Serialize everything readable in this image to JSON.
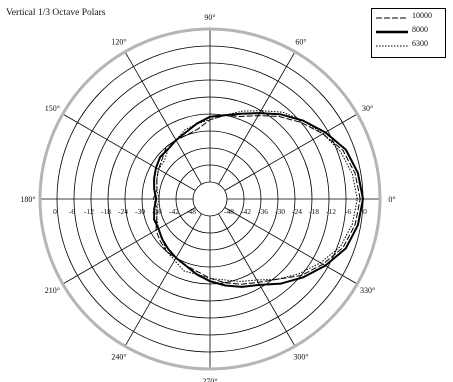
{
  "title": "Vertical 1/3 Octave Polars",
  "chart_data": {
    "type": "polar-line",
    "title": "Vertical 1/3 Octave Polars",
    "angular_ticks_deg": [
      0,
      30,
      60,
      90,
      120,
      150,
      180,
      210,
      240,
      270,
      300,
      330
    ],
    "angular_tick_labels": [
      "0°",
      "30°",
      "60°",
      "90°",
      "120°",
      "150°",
      "180°",
      "210°",
      "240°",
      "270°",
      "300°",
      "330°"
    ],
    "radial_ticks_db": [
      0,
      -6,
      -12,
      -18,
      -24,
      -30,
      -36,
      -42,
      -48
    ],
    "radial_labels_right": [
      "-48",
      "-42",
      "-36",
      "-30",
      "-24",
      "-18",
      "-12",
      "-6",
      "0"
    ],
    "radial_labels_left": [
      "0",
      "-6",
      "-12",
      "-18",
      "-24",
      "-30",
      "-36",
      "-42",
      "-48"
    ],
    "r_range_db": [
      -54,
      0
    ],
    "grid": true,
    "legend_placement": "top-right",
    "series": [
      {
        "name": "10000",
        "style": "dashed",
        "color": "#000000",
        "points": [
          [
            0,
            -1
          ],
          [
            10,
            -2
          ],
          [
            20,
            -4
          ],
          [
            30,
            -8
          ],
          [
            40,
            -12
          ],
          [
            50,
            -16
          ],
          [
            60,
            -20
          ],
          [
            70,
            -23
          ],
          [
            80,
            -24
          ],
          [
            90,
            -26
          ],
          [
            100,
            -29
          ],
          [
            110,
            -30
          ],
          [
            120,
            -30
          ],
          [
            130,
            -30
          ],
          [
            140,
            -32
          ],
          [
            150,
            -33
          ],
          [
            160,
            -34
          ],
          [
            170,
            -35
          ],
          [
            180,
            -34
          ],
          [
            190,
            -35
          ],
          [
            200,
            -34
          ],
          [
            210,
            -32
          ],
          [
            220,
            -31
          ],
          [
            230,
            -30
          ],
          [
            240,
            -30
          ],
          [
            250,
            -29
          ],
          [
            260,
            -28
          ],
          [
            270,
            -26
          ],
          [
            280,
            -24
          ],
          [
            290,
            -22
          ],
          [
            300,
            -20
          ],
          [
            310,
            -17
          ],
          [
            320,
            -12
          ],
          [
            330,
            -8
          ],
          [
            340,
            -4
          ],
          [
            350,
            -2
          ]
        ]
      },
      {
        "name": "8000",
        "style": "solid-thick",
        "color": "#000000",
        "points": [
          [
            0,
            0
          ],
          [
            10,
            -1
          ],
          [
            20,
            -3
          ],
          [
            30,
            -7
          ],
          [
            40,
            -11
          ],
          [
            50,
            -15
          ],
          [
            60,
            -19
          ],
          [
            70,
            -22
          ],
          [
            80,
            -24
          ],
          [
            90,
            -25
          ],
          [
            100,
            -27
          ],
          [
            110,
            -29
          ],
          [
            120,
            -30
          ],
          [
            130,
            -31
          ],
          [
            140,
            -31
          ],
          [
            150,
            -32
          ],
          [
            160,
            -33
          ],
          [
            170,
            -34
          ],
          [
            180,
            -35
          ],
          [
            190,
            -34
          ],
          [
            200,
            -33
          ],
          [
            210,
            -33
          ],
          [
            220,
            -32
          ],
          [
            230,
            -31
          ],
          [
            240,
            -30
          ],
          [
            250,
            -29
          ],
          [
            260,
            -27
          ],
          [
            270,
            -25
          ],
          [
            280,
            -23
          ],
          [
            290,
            -21
          ],
          [
            300,
            -19
          ],
          [
            310,
            -15
          ],
          [
            320,
            -11
          ],
          [
            330,
            -7
          ],
          [
            340,
            -3
          ],
          [
            350,
            -1
          ]
        ]
      },
      {
        "name": "6300",
        "style": "dotted",
        "color": "#000000",
        "points": [
          [
            0,
            -2
          ],
          [
            10,
            -3
          ],
          [
            20,
            -5
          ],
          [
            30,
            -8
          ],
          [
            40,
            -11
          ],
          [
            50,
            -14
          ],
          [
            60,
            -18
          ],
          [
            70,
            -21
          ],
          [
            80,
            -24
          ],
          [
            90,
            -26
          ],
          [
            100,
            -27
          ],
          [
            110,
            -28
          ],
          [
            120,
            -30
          ],
          [
            130,
            -31
          ],
          [
            140,
            -33
          ],
          [
            150,
            -33
          ],
          [
            160,
            -34
          ],
          [
            170,
            -35
          ],
          [
            180,
            -36
          ],
          [
            190,
            -35
          ],
          [
            200,
            -34
          ],
          [
            210,
            -33
          ],
          [
            220,
            -32
          ],
          [
            230,
            -30
          ],
          [
            240,
            -29
          ],
          [
            250,
            -27
          ],
          [
            260,
            -27
          ],
          [
            270,
            -26
          ],
          [
            280,
            -25
          ],
          [
            290,
            -23
          ],
          [
            300,
            -21
          ],
          [
            310,
            -17
          ],
          [
            320,
            -13
          ],
          [
            330,
            -9
          ],
          [
            340,
            -5
          ],
          [
            350,
            -3
          ]
        ]
      }
    ]
  }
}
